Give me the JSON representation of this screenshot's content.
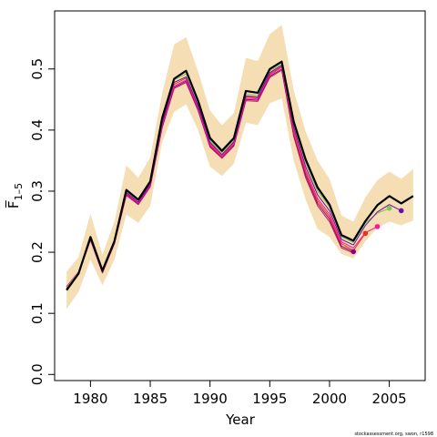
{
  "chart_data": {
    "type": "line",
    "title": "",
    "xlabel": "Year",
    "ylabel": "F̅",
    "ylabel_subscript": "1–5",
    "xlim": [
      1977,
      2008
    ],
    "ylim": [
      -0.01,
      0.595
    ],
    "xticks": [
      1980,
      1985,
      1990,
      1995,
      2000,
      2005
    ],
    "yticks": [
      0.0,
      0.1,
      0.2,
      0.3,
      0.4,
      0.5
    ],
    "ytick_labels": [
      "0.0",
      "0.1",
      "0.2",
      "0.3",
      "0.4",
      "0.5"
    ],
    "grid": false,
    "legend": "none",
    "band": {
      "name": "confidence interval",
      "color": "#f5deb3",
      "x": [
        1978,
        1979,
        1980,
        1981,
        1982,
        1983,
        1984,
        1985,
        1986,
        1987,
        1988,
        1989,
        1990,
        1991,
        1992,
        1993,
        1994,
        1995,
        1996,
        1997,
        1998,
        1999,
        2000,
        2001,
        2002,
        2003,
        2004,
        2005,
        2006,
        2007
      ],
      "upper": [
        0.168,
        0.192,
        0.263,
        0.196,
        0.25,
        0.342,
        0.322,
        0.355,
        0.46,
        0.54,
        0.552,
        0.496,
        0.432,
        0.408,
        0.428,
        0.518,
        0.513,
        0.557,
        0.572,
        0.465,
        0.398,
        0.35,
        0.32,
        0.26,
        0.25,
        0.29,
        0.318,
        0.332,
        0.32,
        0.336
      ],
      "lower": [
        0.107,
        0.135,
        0.188,
        0.146,
        0.188,
        0.262,
        0.248,
        0.276,
        0.38,
        0.43,
        0.442,
        0.4,
        0.34,
        0.325,
        0.345,
        0.412,
        0.408,
        0.444,
        0.452,
        0.35,
        0.286,
        0.238,
        0.225,
        0.197,
        0.19,
        0.218,
        0.24,
        0.25,
        0.244,
        0.252
      ]
    },
    "series": [
      {
        "color": "#000000",
        "width": 2.2,
        "x": [
          1978,
          1979,
          1980,
          1981,
          1982,
          1983,
          1984,
          1985,
          1986,
          1987,
          1988,
          1989,
          1990,
          1991,
          1992,
          1993,
          1994,
          1995,
          1996,
          1997,
          1998,
          1999,
          2000,
          2001,
          2002,
          2003,
          2004,
          2005,
          2006,
          2007
        ],
        "values": [
          0.138,
          0.165,
          0.225,
          0.17,
          0.218,
          0.302,
          0.286,
          0.316,
          0.42,
          0.484,
          0.497,
          0.448,
          0.387,
          0.366,
          0.387,
          0.464,
          0.461,
          0.5,
          0.512,
          0.414,
          0.352,
          0.306,
          0.278,
          0.228,
          0.219,
          0.251,
          0.277,
          0.292,
          0.28,
          0.292
        ]
      },
      {
        "color": "#6a0dad",
        "width": 1.0,
        "x": [
          1978,
          1979,
          1980,
          1981,
          1982,
          1983,
          1984,
          1985,
          1986,
          1987,
          1988,
          1989,
          1990,
          1991,
          1992,
          1993,
          1994,
          1995,
          1996,
          1997,
          1998,
          1999,
          2000,
          2001,
          2002,
          2003,
          2004,
          2005,
          2006
        ],
        "values": [
          0.14,
          0.165,
          0.222,
          0.168,
          0.215,
          0.298,
          0.282,
          0.312,
          0.412,
          0.478,
          0.487,
          0.44,
          0.38,
          0.36,
          0.381,
          0.456,
          0.454,
          0.494,
          0.506,
          0.405,
          0.34,
          0.294,
          0.268,
          0.221,
          0.212,
          0.244,
          0.266,
          0.278,
          0.268
        ],
        "endpoint": [
          2006,
          0.268
        ]
      },
      {
        "color": "#7ec850",
        "width": 1.0,
        "x": [
          1978,
          1979,
          1980,
          1981,
          1982,
          1983,
          1984,
          1985,
          1986,
          1987,
          1988,
          1989,
          1990,
          1991,
          1992,
          1993,
          1994,
          1995,
          1996,
          1997,
          1998,
          1999,
          2000,
          2001,
          2002,
          2003,
          2004,
          2005
        ],
        "values": [
          0.142,
          0.167,
          0.224,
          0.171,
          0.218,
          0.3,
          0.285,
          0.315,
          0.416,
          0.482,
          0.492,
          0.444,
          0.383,
          0.363,
          0.384,
          0.459,
          0.457,
          0.497,
          0.508,
          0.41,
          0.346,
          0.3,
          0.274,
          0.225,
          0.216,
          0.248,
          0.264,
          0.272
        ],
        "endpoint": [
          2005,
          0.272
        ]
      },
      {
        "color": "#ff1493",
        "width": 1.0,
        "x": [
          1978,
          1979,
          1980,
          1981,
          1982,
          1983,
          1984,
          1985,
          1986,
          1987,
          1988,
          1989,
          1990,
          1991,
          1992,
          1993,
          1994,
          1995,
          1996,
          1997,
          1998,
          1999,
          2000,
          2001,
          2002,
          2003,
          2004
        ],
        "values": [
          0.144,
          0.168,
          0.222,
          0.168,
          0.214,
          0.296,
          0.28,
          0.31,
          0.408,
          0.472,
          0.482,
          0.436,
          0.376,
          0.356,
          0.377,
          0.452,
          0.451,
          0.49,
          0.503,
          0.4,
          0.334,
          0.288,
          0.262,
          0.217,
          0.207,
          0.232,
          0.242
        ],
        "endpoint": [
          2004,
          0.242
        ]
      },
      {
        "color": "#e8341c",
        "width": 1.0,
        "x": [
          1978,
          1979,
          1980,
          1981,
          1982,
          1983,
          1984,
          1985,
          1986,
          1987,
          1988,
          1989,
          1990,
          1991,
          1992,
          1993,
          1994,
          1995,
          1996,
          1997,
          1998,
          1999,
          2000,
          2001,
          2002,
          2003
        ],
        "values": [
          0.143,
          0.167,
          0.223,
          0.169,
          0.216,
          0.297,
          0.281,
          0.311,
          0.41,
          0.475,
          0.485,
          0.438,
          0.378,
          0.358,
          0.379,
          0.454,
          0.453,
          0.492,
          0.504,
          0.395,
          0.33,
          0.284,
          0.258,
          0.214,
          0.203,
          0.231
        ],
        "endpoint": [
          2003,
          0.231
        ]
      },
      {
        "color": "#8b008b",
        "width": 1.0,
        "x": [
          1978,
          1979,
          1980,
          1981,
          1982,
          1983,
          1984,
          1985,
          1986,
          1987,
          1988,
          1989,
          1990,
          1991,
          1992,
          1993,
          1994,
          1995,
          1996,
          1997,
          1998,
          1999,
          2000,
          2001,
          2002
        ],
        "values": [
          0.141,
          0.166,
          0.221,
          0.167,
          0.215,
          0.295,
          0.279,
          0.309,
          0.406,
          0.47,
          0.48,
          0.434,
          0.374,
          0.355,
          0.375,
          0.45,
          0.449,
          0.488,
          0.5,
          0.392,
          0.326,
          0.28,
          0.254,
          0.21,
          0.201
        ],
        "endpoint": [
          2002,
          0.201
        ]
      },
      {
        "color": "#c2185b",
        "width": 1.0,
        "x": [
          1978,
          1979,
          1980,
          1981,
          1982,
          1983,
          1984,
          1985,
          1986,
          1987,
          1988,
          1989,
          1990,
          1991,
          1992,
          1993,
          1994,
          1995,
          1996,
          1997,
          1998,
          1999,
          2000,
          2001,
          2002
        ],
        "values": [
          0.139,
          0.164,
          0.22,
          0.166,
          0.214,
          0.293,
          0.278,
          0.307,
          0.404,
          0.468,
          0.478,
          0.432,
          0.372,
          0.354,
          0.374,
          0.448,
          0.447,
          0.486,
          0.498,
          0.39,
          0.322,
          0.276,
          0.25,
          0.207,
          0.199
        ]
      }
    ]
  },
  "footnote": "stockassessment.org, swon, r1598"
}
